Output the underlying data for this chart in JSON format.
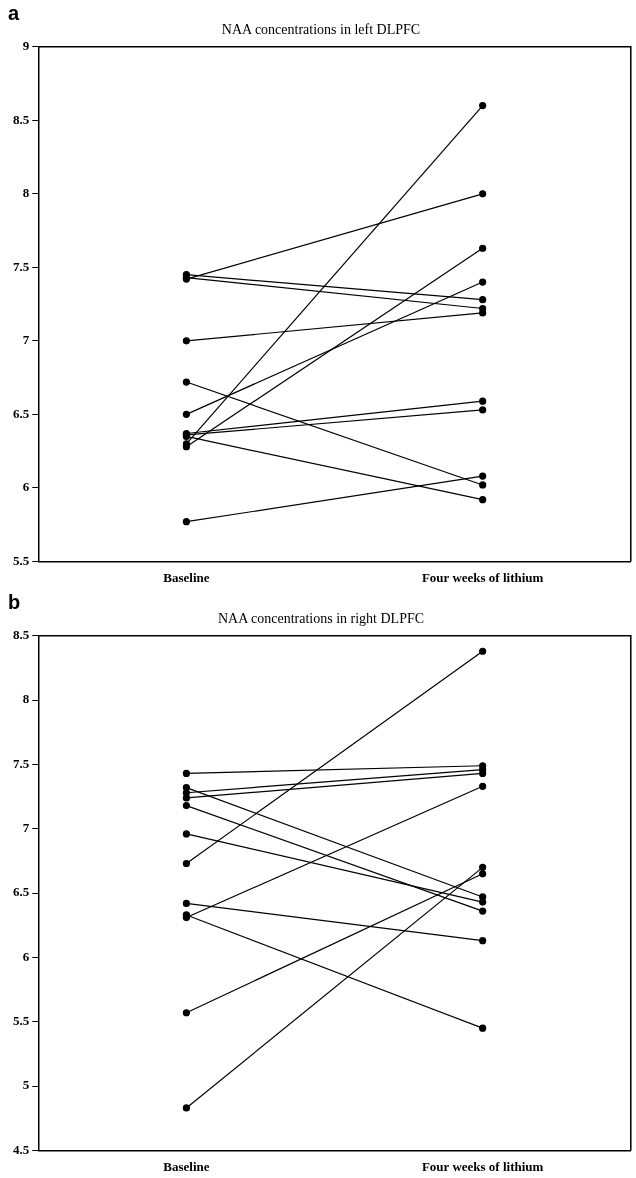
{
  "chart_data": [
    {
      "type": "line",
      "title": "NAA concentrations in left DLPFC",
      "annotations": [
        "a"
      ],
      "categories": [
        "Baseline",
        "Four weeks of lithium"
      ],
      "marker": "circle",
      "line_style": "solid",
      "grid": false,
      "legend": false,
      "ylim": [
        5.5,
        9
      ],
      "yticks": [
        5.5,
        6,
        6.5,
        7,
        7.5,
        8,
        8.5,
        9
      ],
      "series": [
        {
          "color": "#000000",
          "values": [
            7.45,
            7.28
          ]
        },
        {
          "color": "#000000",
          "values": [
            7.43,
            7.22
          ]
        },
        {
          "color": "#000000",
          "values": [
            7.42,
            8.0
          ]
        },
        {
          "color": "#000000",
          "values": [
            7.0,
            7.19
          ]
        },
        {
          "color": "#000000",
          "values": [
            6.72,
            6.02
          ]
        },
        {
          "color": "#000000",
          "values": [
            6.5,
            7.4
          ]
        },
        {
          "color": "#000000",
          "values": [
            6.37,
            6.59
          ]
        },
        {
          "color": "#000000",
          "values": [
            6.36,
            6.53
          ]
        },
        {
          "color": "#000000",
          "values": [
            6.35,
            5.92
          ]
        },
        {
          "color": "#000000",
          "values": [
            6.3,
            8.6
          ]
        },
        {
          "color": "#000000",
          "values": [
            6.28,
            7.63
          ]
        },
        {
          "color": "#000000",
          "values": [
            5.77,
            6.08
          ]
        }
      ]
    },
    {
      "type": "line",
      "title": "NAA concentrations in right DLPFC",
      "annotations": [
        "b"
      ],
      "categories": [
        "Baseline",
        "Four weeks of lithium"
      ],
      "marker": "circle",
      "line_style": "solid",
      "grid": false,
      "legend": false,
      "ylim": [
        4.5,
        8.5
      ],
      "yticks": [
        4.5,
        5,
        5.5,
        6,
        6.5,
        7,
        7.5,
        8,
        8.5
      ],
      "series": [
        {
          "color": "#000000",
          "values": [
            7.43,
            7.49
          ]
        },
        {
          "color": "#000000",
          "values": [
            7.32,
            6.47
          ]
        },
        {
          "color": "#000000",
          "values": [
            7.28,
            7.46
          ]
        },
        {
          "color": "#000000",
          "values": [
            7.24,
            7.43
          ]
        },
        {
          "color": "#000000",
          "values": [
            7.18,
            6.36
          ]
        },
        {
          "color": "#000000",
          "values": [
            6.96,
            6.43
          ]
        },
        {
          "color": "#000000",
          "values": [
            6.73,
            8.38
          ]
        },
        {
          "color": "#000000",
          "values": [
            6.42,
            6.13
          ]
        },
        {
          "color": "#000000",
          "values": [
            6.33,
            5.45
          ]
        },
        {
          "color": "#000000",
          "values": [
            6.31,
            7.33
          ]
        },
        {
          "color": "#000000",
          "values": [
            5.57,
            6.65
          ]
        },
        {
          "color": "#000000",
          "values": [
            4.83,
            6.7
          ]
        }
      ]
    }
  ]
}
